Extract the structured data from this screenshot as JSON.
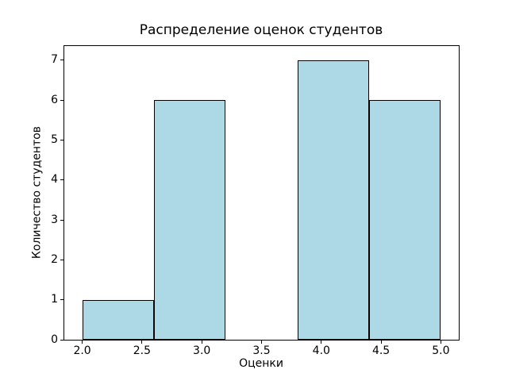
{
  "chart_data": {
    "type": "bar",
    "subtype": "histogram",
    "title": "Распределение оценок студентов",
    "xlabel": "Оценки",
    "ylabel": "Количество студентов",
    "bin_edges": [
      2.0,
      2.6,
      3.2,
      3.8,
      4.4,
      5.0
    ],
    "values": [
      1,
      6,
      0,
      7,
      6
    ],
    "xlim": [
      1.85,
      5.15
    ],
    "ylim": [
      0,
      7.35
    ],
    "xticks": [
      2.0,
      2.5,
      3.0,
      3.5,
      4.0,
      4.5,
      5.0
    ],
    "xtick_labels": [
      "2.0",
      "2.5",
      "3.0",
      "3.5",
      "4.0",
      "4.5",
      "5.0"
    ],
    "yticks": [
      0,
      1,
      2,
      3,
      4,
      5,
      6,
      7
    ],
    "ytick_labels": [
      "0",
      "1",
      "2",
      "3",
      "4",
      "5",
      "6",
      "7"
    ],
    "grid": false,
    "legend_position": "none",
    "colors": {
      "bar_fill": "#ADD8E6",
      "bar_edge": "#000000",
      "spine": "#000000",
      "background": "#FFFFFF",
      "text": "#000000"
    }
  }
}
